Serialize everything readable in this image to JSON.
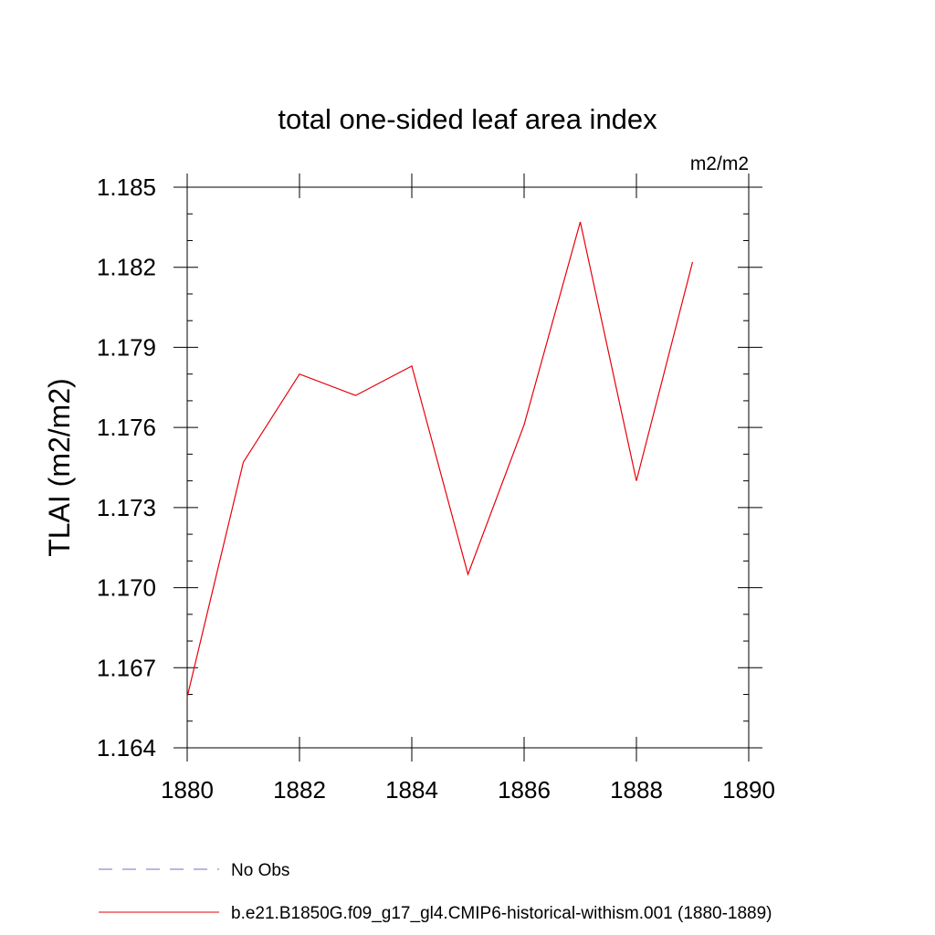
{
  "chart_data": {
    "type": "line",
    "title": "total one-sided leaf area index",
    "units_label": "m2/m2",
    "ylabel": "TLAI  (m2/m2)",
    "xlabel": "",
    "xlim": [
      1880,
      1890
    ],
    "ylim": [
      1.164,
      1.185
    ],
    "x_ticks": [
      1880,
      1882,
      1884,
      1886,
      1888,
      1890
    ],
    "x_tick_labels": [
      "1880",
      "1882",
      "1884",
      "1886",
      "1888",
      "1890"
    ],
    "y_ticks": [
      1.164,
      1.167,
      1.17,
      1.173,
      1.176,
      1.179,
      1.182,
      1.185
    ],
    "y_tick_labels": [
      "1.164",
      "1.167",
      "1.170",
      "1.173",
      "1.176",
      "1.179",
      "1.182",
      "1.185"
    ],
    "grid": false,
    "legend_position": "bottom-left",
    "series": [
      {
        "name": "b.e21.B1850G.f09_g17_gl4.CMIP6-historical-withism.001 (1880-1889)",
        "color": "#e8000b",
        "style": "solid",
        "x": [
          1880,
          1881,
          1882,
          1883,
          1884,
          1885,
          1886,
          1887,
          1888,
          1889
        ],
        "y": [
          1.1659,
          1.1747,
          1.178,
          1.1772,
          1.1783,
          1.1705,
          1.1761,
          1.1837,
          1.174,
          1.1822
        ]
      }
    ],
    "legend": [
      {
        "label": "No Obs",
        "color": "#7b68c8",
        "style": "dashed"
      },
      {
        "label": "b.e21.B1850G.f09_g17_gl4.CMIP6-historical-withism.001 (1880-1889)",
        "color": "#e8000b",
        "style": "solid"
      }
    ]
  }
}
